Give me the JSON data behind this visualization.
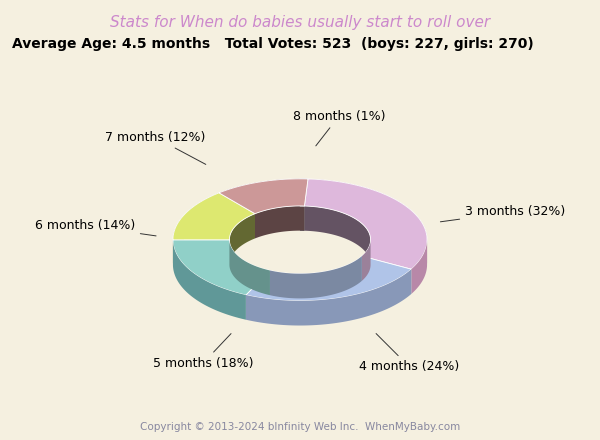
{
  "title": "Stats for When do babies usually start to roll over",
  "subtitle": "Average Age: 4.5 months   Total Votes: 523  (boys: 227, girls: 270)",
  "copyright": "Copyright © 2013-2024 bInfinity Web Inc.  WhenMyBaby.com",
  "labels": [
    "3 months (32%)",
    "4 months (24%)",
    "5 months (18%)",
    "6 months (14%)",
    "7 months (12%)",
    "8 months (1%)"
  ],
  "values": [
    32,
    24,
    18,
    14,
    12,
    1
  ],
  "colors_top": [
    "#deb8dc",
    "#b0c4e8",
    "#90d0c8",
    "#dde870",
    "#cc9898",
    "#7090c8"
  ],
  "colors_outer_dark": [
    "#8a607a",
    "#606888",
    "#406860",
    "#787830",
    "#704848",
    "#304878"
  ],
  "colors_outer_front": [
    "#b888a8",
    "#8898b8",
    "#609898",
    "#a8a840",
    "#a06868",
    "#5068a8"
  ],
  "colors_inner": [
    "#c8a0c0",
    "#98b0d8",
    "#78c0b8",
    "#ccd860",
    "#bc8888",
    "#6080b8"
  ],
  "background_color": "#f5f0e0",
  "title_color": "#cc88cc",
  "subtitle_color": "#000000",
  "copyright_color": "#8888a0",
  "label_fontsize": 9,
  "title_fontsize": 11,
  "subtitle_fontsize": 10
}
